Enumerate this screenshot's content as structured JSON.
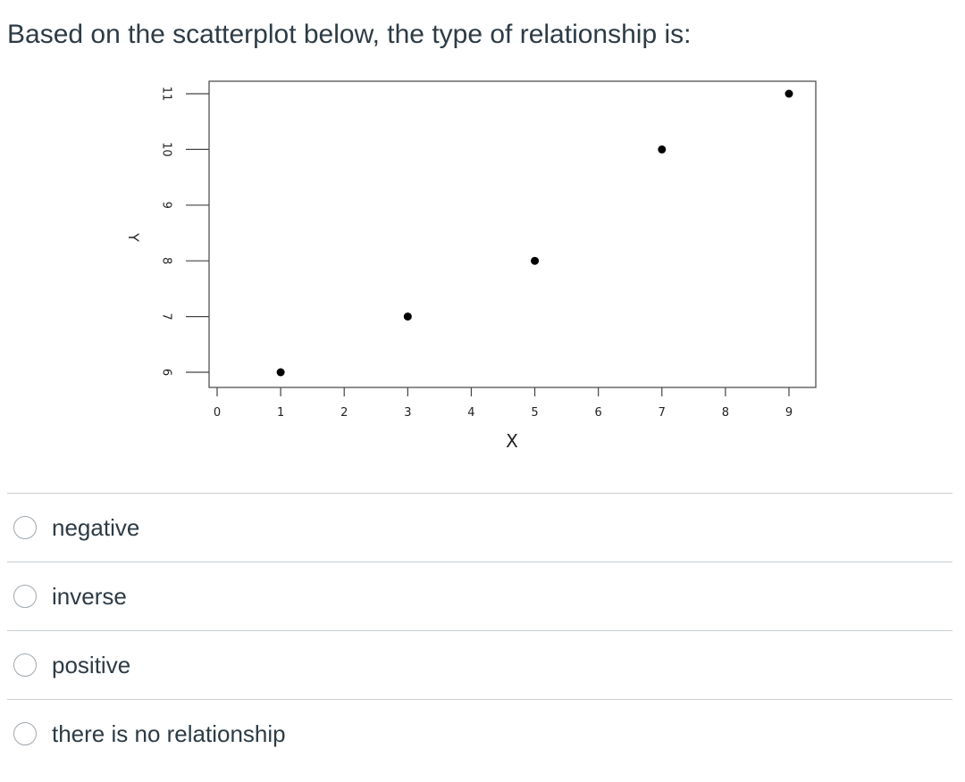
{
  "question": {
    "text": "Based on the scatterplot below, the type of relationship is:"
  },
  "chart_data": {
    "type": "scatter",
    "title": "",
    "xlabel": "X",
    "ylabel": "Y",
    "xlim": [
      0,
      9
    ],
    "ylim": [
      6,
      11
    ],
    "x_ticks": [
      0,
      1,
      2,
      3,
      4,
      5,
      6,
      7,
      8,
      9
    ],
    "y_ticks": [
      6,
      7,
      8,
      9,
      10,
      11
    ],
    "grid": false,
    "series": [
      {
        "x": [
          1,
          3,
          5,
          7,
          9
        ],
        "y": [
          6,
          7,
          8,
          10,
          11
        ]
      }
    ]
  },
  "answers": [
    {
      "label": "negative",
      "selected": false
    },
    {
      "label": "inverse",
      "selected": false
    },
    {
      "label": "positive",
      "selected": false
    },
    {
      "label": "there is no relationship",
      "selected": false
    }
  ]
}
